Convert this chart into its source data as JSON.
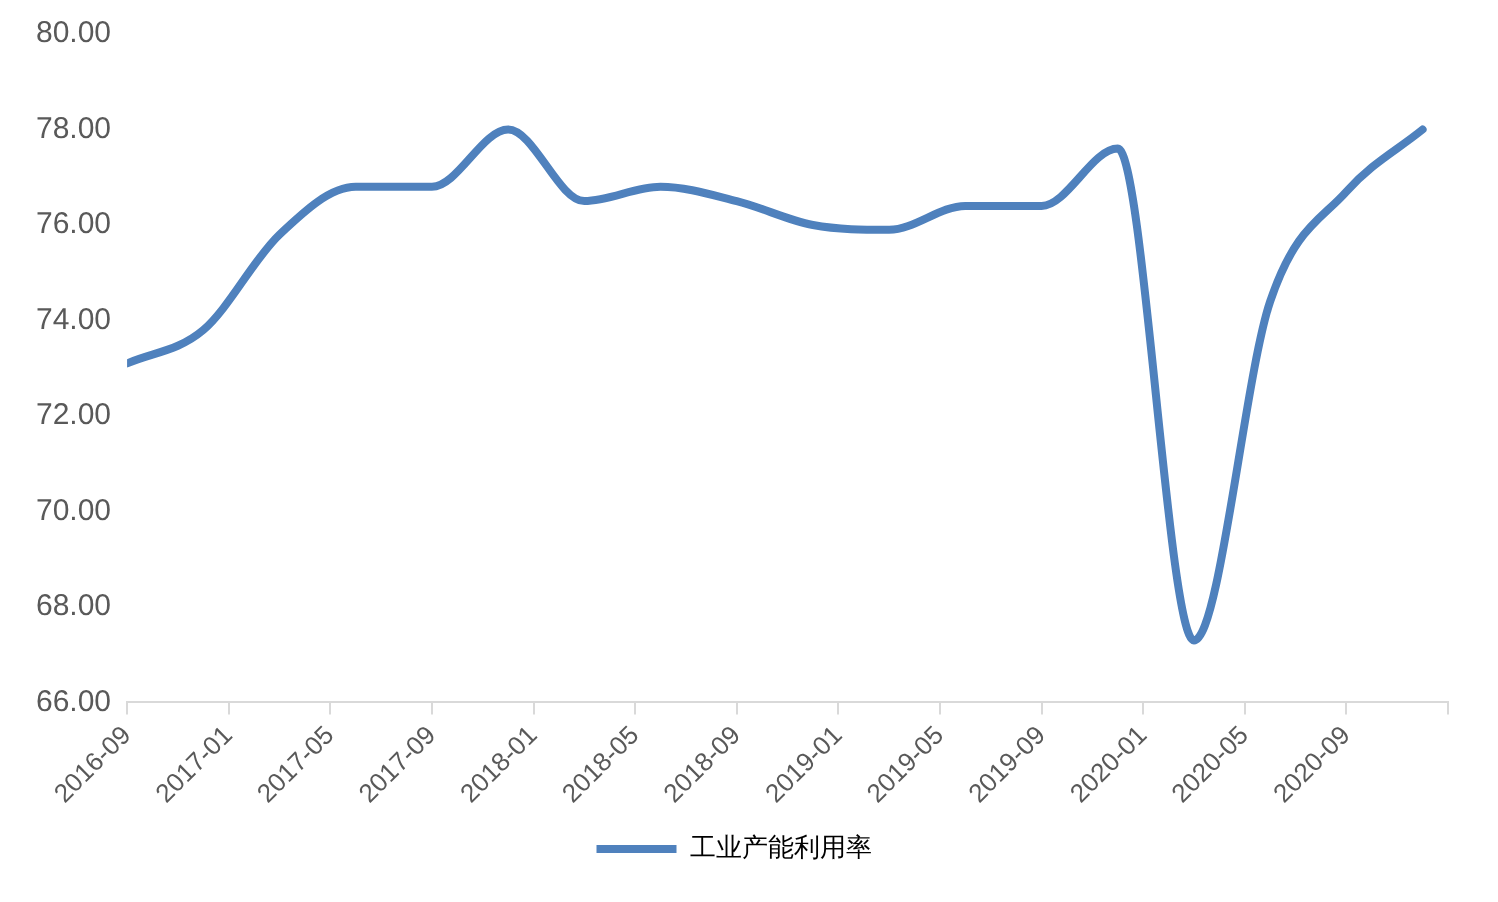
{
  "chart_data": {
    "type": "line",
    "x": [
      "2016-09",
      "2016-12",
      "2017-03",
      "2017-06",
      "2017-09",
      "2017-12",
      "2018-03",
      "2018-06",
      "2018-09",
      "2018-12",
      "2019-03",
      "2019-06",
      "2019-09",
      "2019-12",
      "2020-03",
      "2020-06",
      "2020-09",
      "2020-12"
    ],
    "series": [
      {
        "name": "工业产能利用率",
        "color": "#4f81bd",
        "values": [
          73.1,
          73.8,
          75.8,
          76.8,
          76.8,
          78.0,
          76.5,
          76.8,
          76.5,
          76.0,
          75.9,
          76.4,
          76.4,
          77.6,
          67.3,
          74.4,
          76.7,
          78.0
        ]
      }
    ],
    "xlim": [
      "2016-09",
      "2021-01"
    ],
    "xticks": [
      "2016-09",
      "2017-01",
      "2017-05",
      "2017-09",
      "2018-01",
      "2018-05",
      "2018-09",
      "2019-01",
      "2019-05",
      "2019-09",
      "2020-01",
      "2020-05",
      "2020-09",
      {
        "value": "2021-01",
        "label": null
      }
    ],
    "ylim": [
      66,
      80
    ],
    "yticks": [
      {
        "value": 66,
        "label": "66.00"
      },
      {
        "value": 68,
        "label": "68.00"
      },
      {
        "value": 70,
        "label": "70.00"
      },
      {
        "value": 72,
        "label": "72.00"
      },
      {
        "value": 74,
        "label": "74.00"
      },
      {
        "value": 76,
        "label": "76.00"
      },
      {
        "value": 78,
        "label": "78.00"
      },
      {
        "value": 80,
        "label": "80.00"
      }
    ],
    "grid": false,
    "legend": "bottom",
    "marker": "none",
    "line_style": "solid"
  }
}
